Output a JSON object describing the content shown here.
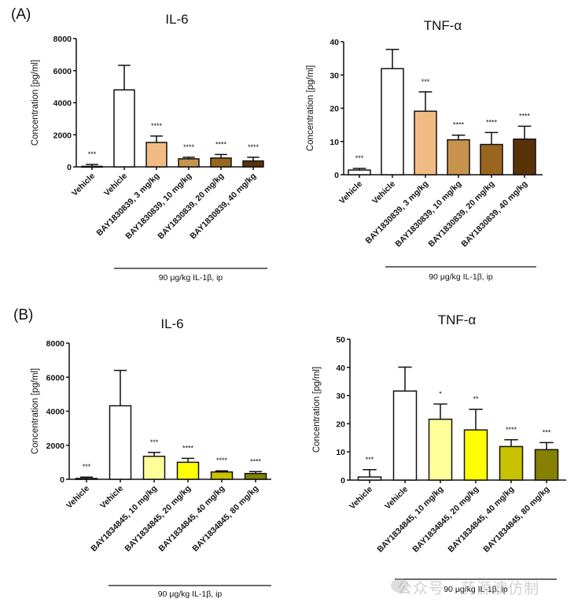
{
  "panels": [
    {
      "label": "(A)"
    },
    {
      "label": "(B)"
    }
  ],
  "watermark": "公众号 · 药源澳仿制",
  "chart_data": [
    {
      "type": "bar",
      "panel": "A",
      "title": "IL-6",
      "ylabel": "Concentration [pg/ml]",
      "ylim": [
        0,
        8000
      ],
      "yticks": [
        0,
        2000,
        4000,
        6000,
        8000
      ],
      "categories": [
        "Vehicle",
        "Vehicle",
        "BAY1830839, 3 mg/kg",
        "BAY1830839, 10 mg/kg",
        "BAY1830839, 20 mg/kg",
        "BAY1830839, 40 mg/kg"
      ],
      "values": [
        30,
        4800,
        1520,
        500,
        550,
        370
      ],
      "errors": [
        120,
        1530,
        400,
        100,
        220,
        230
      ],
      "significance": [
        "***",
        "",
        "****",
        "****",
        "****",
        "****"
      ],
      "colors": [
        "#ffffff",
        "#ffffff",
        "#f2bb84",
        "#c8934e",
        "#99661f",
        "#5a3208"
      ],
      "group_label": "90 μg/kg IL-1β, ip",
      "group_span": [
        1,
        5
      ]
    },
    {
      "type": "bar",
      "panel": "A",
      "title": "TNF-α",
      "ylabel": "Concentration [pg/ml]",
      "ylim": [
        0,
        40
      ],
      "yticks": [
        0,
        10,
        20,
        30,
        40
      ],
      "categories": [
        "Vehicle",
        "Vehicle",
        "BAY1830839, 3 mg/kg",
        "BAY1830839, 10 mg/kg",
        "BAY1830839, 20 mg/kg",
        "BAY1830839, 40 mg/kg"
      ],
      "values": [
        1.4,
        31.9,
        19.1,
        10.5,
        9.1,
        10.7
      ],
      "errors": [
        0.5,
        5.8,
        5.8,
        1.4,
        3.6,
        3.9
      ],
      "significance": [
        "***",
        "",
        "***",
        "****",
        "****",
        "****"
      ],
      "colors": [
        "#ffffff",
        "#ffffff",
        "#f2bb84",
        "#c8934e",
        "#99661f",
        "#5a3208"
      ],
      "group_label": "90 μg/kg IL-1β, ip",
      "group_span": [
        1,
        5
      ]
    },
    {
      "type": "bar",
      "panel": "B",
      "title": "IL-6",
      "ylabel": "Concentration [pg/ml]",
      "ylim": [
        0,
        8000
      ],
      "yticks": [
        0,
        2000,
        4000,
        6000,
        8000
      ],
      "categories": [
        "Vehicle",
        "Vehicle",
        "BAY1834845, 10 mg/kg",
        "BAY1834845, 20 mg/kg",
        "BAY1834845, 40 mg/kg",
        "BAY1834845, 80 mg/kg"
      ],
      "values": [
        50,
        4320,
        1350,
        1000,
        430,
        340
      ],
      "errors": [
        80,
        2080,
        230,
        230,
        70,
        110
      ],
      "significance": [
        "***",
        "",
        "***",
        "****",
        "****",
        "****"
      ],
      "colors": [
        "#ffffff",
        "#ffffff",
        "#ffff99",
        "#ffff00",
        "#c8c200",
        "#858000"
      ],
      "group_label": "90 μg/kg IL-1β, ip",
      "group_span": [
        1,
        5
      ]
    },
    {
      "type": "bar",
      "panel": "B",
      "title": "TNF-α",
      "ylabel": "Concentration [pg/ml]",
      "ylim": [
        0,
        50
      ],
      "yticks": [
        0,
        10,
        20,
        30,
        40,
        50
      ],
      "categories": [
        "Vehicle",
        "Vehicle",
        "BAY1834845, 10 mg/kg",
        "BAY1834845, 20 mg/kg",
        "BAY1834845, 40 mg/kg",
        "BAY1834845, 80 mg/kg"
      ],
      "values": [
        1.1,
        31.6,
        21.6,
        17.8,
        11.9,
        10.8
      ],
      "errors": [
        2.6,
        8.5,
        5.4,
        7.3,
        2.4,
        2.5
      ],
      "significance": [
        "***",
        "",
        "*",
        "**",
        "****",
        "***"
      ],
      "colors": [
        "#ffffff",
        "#ffffff",
        "#ffff99",
        "#ffff00",
        "#c8c200",
        "#858000"
      ],
      "group_label": "90 μg/kg IL-1β, ip",
      "group_span": [
        1,
        5
      ]
    }
  ]
}
